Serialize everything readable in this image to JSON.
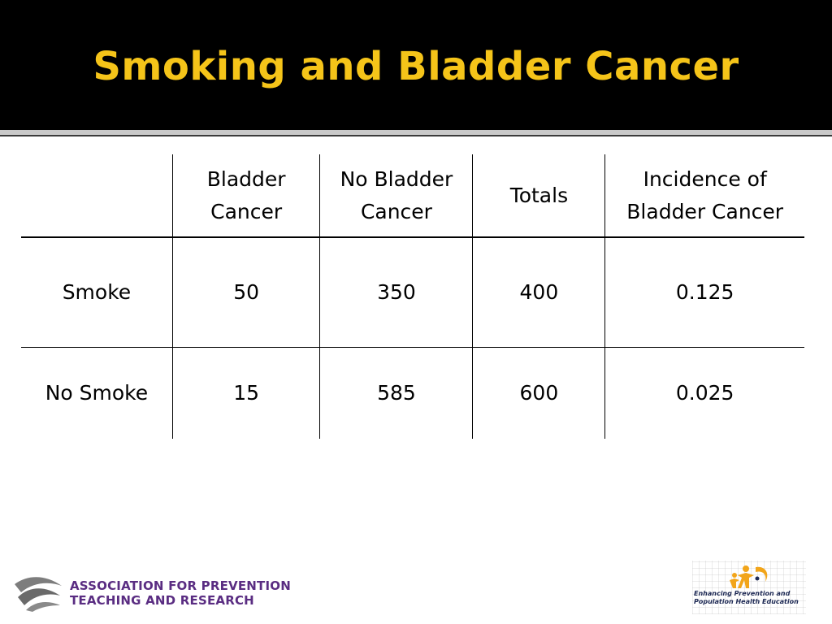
{
  "slide": {
    "title": "Smoking and Bladder Cancer"
  },
  "table": {
    "headers": [
      "",
      "Bladder\nCancer",
      "No Bladder\nCancer",
      "Totals",
      "Incidence of\nBladder Cancer"
    ],
    "rows": [
      [
        "Smoke",
        "50",
        "350",
        "400",
        "0.125"
      ],
      [
        "No Smoke",
        "15",
        "585",
        "600",
        "0.025"
      ]
    ]
  },
  "footer": {
    "left_logo_line1": "ASSOCIATION FOR PREVENTION",
    "left_logo_line2": "TEACHING AND RESEARCH",
    "right_logo_line1": "Enhancing Prevention and",
    "right_logo_line2": "Population Health Education"
  },
  "colors": {
    "title_text": "#f5c419",
    "title_background": "#000000",
    "logo_purple": "#5a2d82",
    "logo_orange": "#f2a51a",
    "logo_navy": "#1e2a55"
  }
}
